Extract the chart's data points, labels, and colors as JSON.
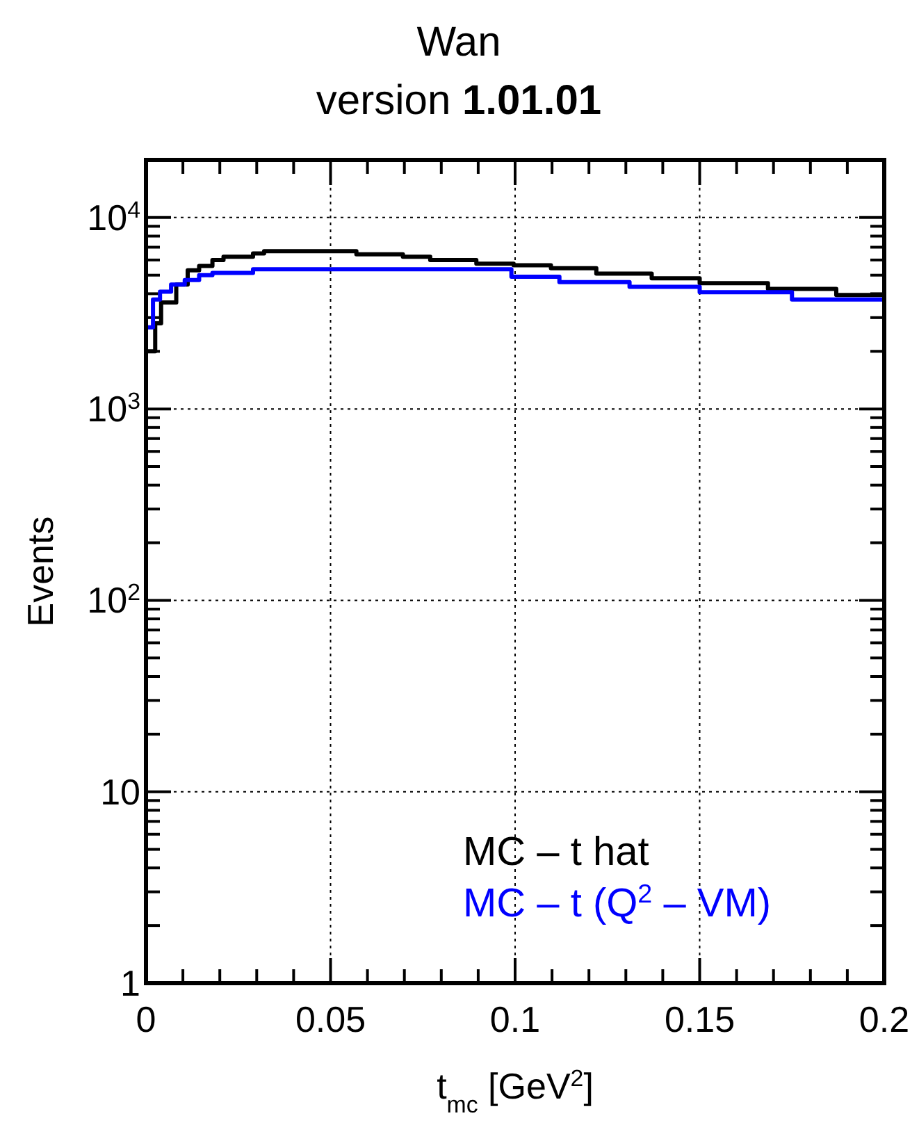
{
  "chart_data": {
    "type": "step",
    "title": "Wan",
    "subtitle": "version 1.01.01",
    "xlabel": "t$_{mc}$ [GeV$^{2}$]",
    "ylabel": "Events",
    "log": "y",
    "grid": true,
    "legend": "bottom right",
    "line_style": "solid",
    "marker": "none",
    "xlim": [
      0,
      0.2
    ],
    "ylim": [
      1,
      20000
    ],
    "xticks": [
      0,
      {
        "value": 0.01,
        "label": null
      },
      {
        "value": 0.02,
        "label": null
      },
      {
        "value": 0.03,
        "label": null
      },
      {
        "value": 0.04,
        "label": null
      },
      0.05,
      {
        "value": 0.06,
        "label": null
      },
      {
        "value": 0.07,
        "label": null
      },
      {
        "value": 0.08,
        "label": null
      },
      {
        "value": 0.09,
        "label": null
      },
      0.1,
      {
        "value": 0.11,
        "label": null
      },
      {
        "value": 0.12,
        "label": null
      },
      {
        "value": 0.13,
        "label": null
      },
      {
        "value": 0.14,
        "label": null
      },
      0.15,
      {
        "value": 0.16,
        "label": null
      },
      {
        "value": 0.17,
        "label": null
      },
      {
        "value": 0.18,
        "label": null
      },
      {
        "value": 0.19,
        "label": null
      },
      0.2
    ],
    "yticks": [
      1,
      {
        "value": 2,
        "label": null
      },
      {
        "value": 3,
        "label": null
      },
      {
        "value": 4,
        "label": null
      },
      {
        "value": 5,
        "label": null
      },
      {
        "value": 6,
        "label": null
      },
      {
        "value": 7,
        "label": null
      },
      {
        "value": 8,
        "label": null
      },
      {
        "value": 9,
        "label": null
      },
      10,
      {
        "value": 20,
        "label": null
      },
      {
        "value": 30,
        "label": null
      },
      {
        "value": 40,
        "label": null
      },
      {
        "value": 50,
        "label": null
      },
      {
        "value": 60,
        "label": null
      },
      {
        "value": 70,
        "label": null
      },
      {
        "value": 80,
        "label": null
      },
      {
        "value": 90,
        "label": null
      },
      {
        "value": 100,
        "label": "10$^{2}$"
      },
      {
        "value": 200,
        "label": null
      },
      {
        "value": 300,
        "label": null
      },
      {
        "value": 400,
        "label": null
      },
      {
        "value": 500,
        "label": null
      },
      {
        "value": 600,
        "label": null
      },
      {
        "value": 700,
        "label": null
      },
      {
        "value": 800,
        "label": null
      },
      {
        "value": 900,
        "label": null
      },
      {
        "value": 1000,
        "label": "10$^{3}$"
      },
      {
        "value": 2000,
        "label": null
      },
      {
        "value": 3000,
        "label": null
      },
      {
        "value": 4000,
        "label": null
      },
      {
        "value": 5000,
        "label": null
      },
      {
        "value": 6000,
        "label": null
      },
      {
        "value": 7000,
        "label": null
      },
      {
        "value": 8000,
        "label": null
      },
      {
        "value": 9000,
        "label": null
      },
      {
        "value": 10000,
        "label": "10$^{4}$"
      },
      {
        "value": 20000,
        "label": null
      }
    ],
    "series": [
      {
        "name": "MC – t hat",
        "color": "#000000",
        "x": [
          0,
          0.0025,
          0.0041,
          0.0082,
          0.0113,
          0.0144,
          0.018,
          0.021,
          0.029,
          0.032,
          0.057,
          0.0696,
          0.077,
          0.0895,
          0.0996,
          0.1097,
          0.122,
          0.137,
          0.15,
          0.1685,
          0.187,
          0.2
        ],
        "values": [
          2000,
          2800,
          3600,
          4470,
          5300,
          5580,
          6000,
          6240,
          6490,
          6670,
          6420,
          6240,
          6000,
          5740,
          5630,
          5440,
          5090,
          4810,
          4540,
          4240,
          3940,
          3940
        ]
      },
      {
        "name": "MC – t (Q$^{2}$ – VM)",
        "color": "#0000ff",
        "x": [
          0,
          0.0019,
          0.0038,
          0.0068,
          0.0105,
          0.0144,
          0.018,
          0.029,
          0.099,
          0.112,
          0.131,
          0.15,
          0.175,
          0.2
        ],
        "values": [
          2670,
          3730,
          4100,
          4470,
          4720,
          5000,
          5140,
          5370,
          4910,
          4600,
          4350,
          4070,
          3730,
          3730
        ]
      }
    ]
  }
}
